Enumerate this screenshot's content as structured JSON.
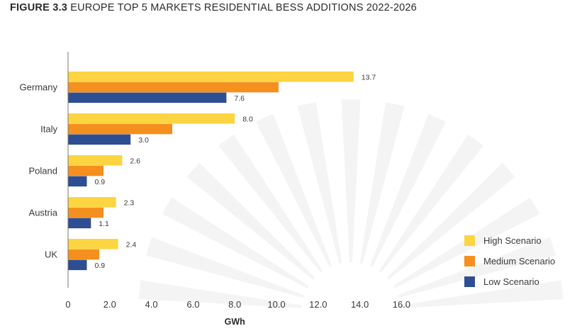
{
  "title": {
    "figure_label": "FIGURE 3.3",
    "text": "EUROPE TOP 5 MARKETS RESIDENTIAL BESS ADDITIONS 2022-2026"
  },
  "colors": {
    "high": "#FDD441",
    "medium": "#F5901E",
    "low": "#2E4E93",
    "axis": "#777777",
    "watermark": "#F4F4F4"
  },
  "chart_data": {
    "type": "bar",
    "orientation": "horizontal",
    "title": "FIGURE 3.3 EUROPE TOP 5 MARKETS RESIDENTIAL BESS ADDITIONS 2022-2026",
    "xlabel": "GWh",
    "ylabel": "",
    "categories": [
      "Germany",
      "Italy",
      "Poland",
      "Austria",
      "UK"
    ],
    "series": [
      {
        "name": "High Scenario",
        "color_key": "high",
        "values": [
          13.7,
          8.0,
          2.6,
          2.3,
          2.4
        ],
        "labels": [
          "13.7",
          "8.0",
          "2.6",
          "2.3",
          "2.4"
        ]
      },
      {
        "name": "Medium Scenario",
        "color_key": "medium",
        "values": [
          10.1,
          5.0,
          1.7,
          1.7,
          1.5
        ],
        "labels": null
      },
      {
        "name": "Low Scenario",
        "color_key": "low",
        "values": [
          7.6,
          3.0,
          0.9,
          1.1,
          0.9
        ],
        "labels": [
          "7.6",
          "3.0",
          "0.9",
          "1.1",
          "0.9"
        ]
      }
    ],
    "xlim": [
      0,
      16
    ],
    "xticks": [
      "0",
      "2.0",
      "4.0",
      "6.0",
      "8.0",
      "10.0",
      "12.0",
      "14.0",
      "16.0"
    ],
    "grid": false,
    "legend_position": "right"
  }
}
